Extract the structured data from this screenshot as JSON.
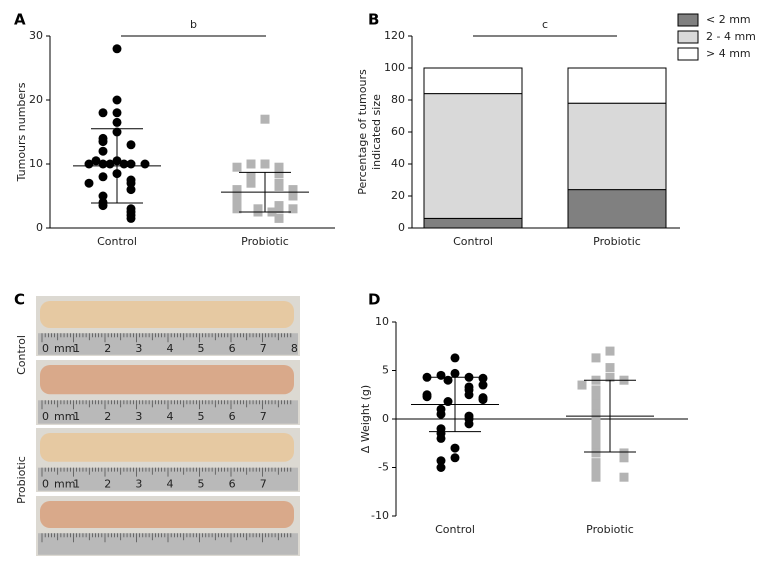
{
  "chart_data": [
    {
      "type": "strip",
      "label": "A",
      "ylabel": "Tumours numbers",
      "annotation": "b",
      "categories": [
        "Control",
        "Probiotic"
      ],
      "groups": [
        {
          "color": "#000000",
          "marker": "circle",
          "mean": 9.7,
          "sd": 5.8,
          "values": [
            28,
            20,
            18,
            18,
            16.5,
            15,
            14,
            13.5,
            13,
            12,
            10.5,
            10,
            10,
            10,
            10,
            10,
            10,
            10.5,
            8.5,
            8,
            7.5,
            7,
            7,
            6,
            5,
            4,
            3.5,
            3,
            2.5,
            2,
            1.5
          ]
        },
        {
          "color": "#b3b3b3",
          "marker": "square",
          "mean": 5.6,
          "sd": 3.1,
          "values": [
            17,
            10,
            10,
            9.5,
            9.5,
            8.5,
            8,
            7,
            7,
            6.5,
            6,
            6,
            5.5,
            5,
            5,
            4.5,
            4,
            3.5,
            3,
            3,
            3,
            3,
            2.5,
            2.5,
            1.5
          ]
        }
      ],
      "ylim": [
        0,
        30
      ],
      "yticks": [
        0,
        10,
        20,
        30
      ]
    },
    {
      "type": "stacked_bar",
      "label": "B",
      "ylabel": [
        "Percentage of tumours",
        "indicated size"
      ],
      "annotation": "c",
      "categories": [
        "Control",
        "Probiotic"
      ],
      "series": [
        {
          "name": "< 2 mm",
          "color": "#808080",
          "values": [
            6,
            24
          ]
        },
        {
          "name": "2 - 4 mm",
          "color": "#d9d9d9",
          "values": [
            78,
            54
          ]
        },
        {
          "name": "> 4 mm",
          "color": "#ffffff",
          "values": [
            16,
            22
          ]
        }
      ],
      "ylim": [
        0,
        120
      ],
      "yticks": [
        0,
        20,
        40,
        60,
        80,
        100,
        120
      ],
      "legend": "top-right"
    },
    {
      "type": "strip",
      "label": "D",
      "ylabel": "Δ Weight (g)",
      "zero_line": true,
      "categories": [
        "Control",
        "Probiotic"
      ],
      "groups": [
        {
          "color": "#000000",
          "marker": "circle",
          "mean": 1.5,
          "sd": 2.8,
          "values": [
            6.3,
            4.7,
            4.5,
            4.3,
            4.3,
            4.2,
            4,
            3.5,
            3.3,
            3,
            2.5,
            2.5,
            2.3,
            2.2,
            2,
            1.8,
            1,
            0.5,
            0.3,
            0,
            -0.5,
            -1,
            -1.5,
            -2,
            -3,
            -4,
            -4.3,
            -5
          ]
        },
        {
          "color": "#b3b3b3",
          "marker": "square",
          "mean": 0.3,
          "sd": 3.7,
          "values": [
            7,
            6.3,
            5.3,
            4.3,
            4,
            4,
            3.5,
            3,
            2.5,
            2,
            1.5,
            1,
            0.5,
            0,
            -0.5,
            -1,
            -1.5,
            -2,
            -2.5,
            -3,
            -3.5,
            -3.5,
            -4,
            -4.5,
            -5,
            -5.5,
            -6,
            -6
          ]
        }
      ],
      "ylim": [
        -10,
        10
      ],
      "yticks": [
        -10,
        -5,
        0,
        5,
        10
      ]
    }
  ],
  "photo_panel": {
    "label": "C",
    "groups": [
      "Control",
      "Probiotic"
    ],
    "photos": [
      {
        "ruler_labels": [
          "0",
          "mm",
          "1",
          "2",
          "3",
          "4",
          "5",
          "6",
          "7",
          "8"
        ]
      },
      {
        "ruler_labels": [
          "0",
          "mm",
          "1",
          "2",
          "3",
          "4",
          "5",
          "6",
          "7"
        ]
      },
      {
        "ruler_labels": [
          "0",
          "mm",
          "1",
          "2",
          "3",
          "4",
          "5",
          "6",
          "7"
        ]
      },
      {}
    ]
  }
}
